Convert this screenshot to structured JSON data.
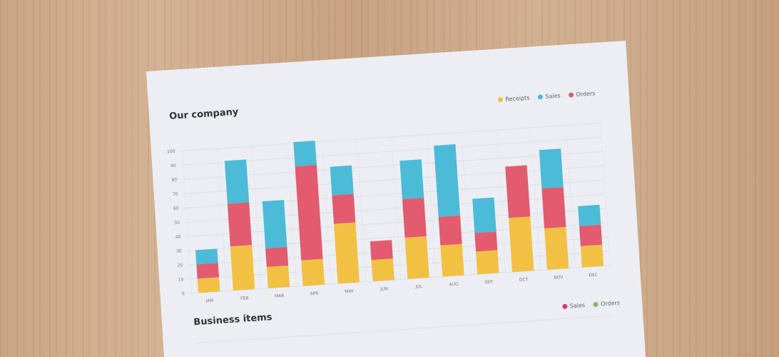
{
  "chart_data": [
    {
      "type": "stacked-bar",
      "title": "Our company",
      "categories": [
        "JAN",
        "FEB",
        "MAR",
        "APR",
        "MAY",
        "JUN",
        "JUL",
        "AUG",
        "SEP",
        "OCT",
        "NOV",
        "DEC"
      ],
      "series": [
        {
          "name": "Receipts",
          "color": "#f2c043",
          "values": [
            10,
            31,
            15,
            18,
            42,
            15,
            29,
            22,
            16,
            38,
            29,
            15
          ]
        },
        {
          "name": "Sales",
          "color": "#4bbbd8",
          "values": [
            10,
            30,
            33,
            17,
            20,
            0,
            27,
            50,
            24,
            0,
            27,
            14
          ]
        },
        {
          "name": "Orders",
          "color": "#e25b6e",
          "values": [
            10,
            30,
            13,
            66,
            20,
            13,
            27,
            20,
            13,
            36,
            28,
            14
          ]
        }
      ],
      "ylim": [
        0,
        100
      ],
      "yticks": [
        0,
        10,
        20,
        30,
        40,
        50,
        60,
        70,
        80,
        90,
        100
      ],
      "grid": true
    },
    {
      "type": "line",
      "title": "Business items",
      "series": [
        {
          "name": "Sales",
          "color": "#e0386e"
        },
        {
          "name": "Orders",
          "color": "#8ab957"
        }
      ]
    }
  ]
}
